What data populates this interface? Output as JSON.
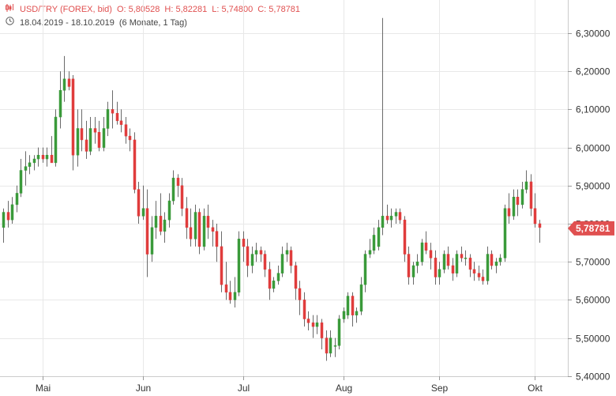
{
  "header": {
    "symbol": "USD/TRY (FOREX, bid)",
    "open": "O: 5,80528",
    "high": "H: 5,82281",
    "low": "L: 5,74800",
    "close": "C: 5,78781",
    "range": "18.04.2019 - 18.10.2019",
    "period": "(6 Monate, 1 Tag)",
    "icons": [
      "candlestick-icon",
      "clock-icon"
    ]
  },
  "colors": {
    "up": "#3a9a3a",
    "down": "#e03c3c",
    "grid": "#e8e8e8",
    "tag": "#e05050"
  },
  "chart_data": {
    "type": "candlestick",
    "ylim": [
      5.4,
      6.34
    ],
    "y_ticks": [
      "6,30000",
      "6,20000",
      "6,10000",
      "6,00000",
      "5,90000",
      "5,80000",
      "5,70000",
      "5,60000",
      "5,50000",
      "5,40000"
    ],
    "y_tick_values": [
      6.3,
      6.2,
      6.1,
      6.0,
      5.9,
      5.8,
      5.7,
      5.6,
      5.5,
      5.4
    ],
    "x_ticks": [
      "Mai",
      "Jun",
      "Jul",
      "Aug",
      "Sep",
      "Okt"
    ],
    "x_tick_index": [
      9,
      32,
      55,
      78,
      100,
      122
    ],
    "last_price_label": "5,78781",
    "last_price": 5.7878,
    "candles": [
      [
        5.79,
        5.84,
        5.75,
        5.83
      ],
      [
        5.83,
        5.86,
        5.79,
        5.81
      ],
      [
        5.81,
        5.87,
        5.8,
        5.85
      ],
      [
        5.85,
        5.9,
        5.83,
        5.88
      ],
      [
        5.88,
        5.97,
        5.87,
        5.94
      ],
      [
        5.94,
        5.99,
        5.9,
        5.95
      ],
      [
        5.95,
        5.98,
        5.93,
        5.96
      ],
      [
        5.96,
        5.98,
        5.94,
        5.97
      ],
      [
        5.97,
        6.0,
        5.95,
        5.98
      ],
      [
        5.98,
        6.0,
        5.96,
        5.97
      ],
      [
        5.97,
        6.0,
        5.95,
        5.98
      ],
      [
        5.98,
        6.03,
        5.96,
        5.96
      ],
      [
        5.96,
        6.1,
        5.95,
        6.08
      ],
      [
        6.08,
        6.2,
        6.05,
        6.15
      ],
      [
        6.15,
        6.24,
        6.12,
        6.18
      ],
      [
        6.18,
        6.2,
        6.15,
        6.16
      ],
      [
        6.18,
        6.19,
        5.94,
        5.98
      ],
      [
        5.98,
        6.1,
        5.95,
        6.05
      ],
      [
        6.05,
        6.1,
        5.99,
        6.02
      ],
      [
        6.02,
        6.07,
        5.97,
        5.99
      ],
      [
        5.99,
        6.08,
        5.98,
        6.05
      ],
      [
        6.05,
        6.08,
        6.01,
        6.04
      ],
      [
        6.04,
        6.07,
        5.99,
        6.0
      ],
      [
        6.0,
        6.08,
        5.99,
        6.05
      ],
      [
        6.05,
        6.12,
        6.03,
        6.1
      ],
      [
        6.1,
        6.15,
        6.05,
        6.09
      ],
      [
        6.09,
        6.12,
        6.06,
        6.07
      ],
      [
        6.07,
        6.1,
        6.04,
        6.06
      ],
      [
        6.06,
        6.08,
        6.01,
        6.03
      ],
      [
        6.03,
        6.05,
        5.99,
        6.02
      ],
      [
        6.02,
        6.04,
        5.88,
        5.89
      ],
      [
        5.89,
        5.91,
        5.8,
        5.82
      ],
      [
        5.82,
        5.9,
        5.81,
        5.84
      ],
      [
        5.84,
        5.89,
        5.66,
        5.72
      ],
      [
        5.72,
        5.82,
        5.7,
        5.79
      ],
      [
        5.79,
        5.86,
        5.76,
        5.82
      ],
      [
        5.82,
        5.88,
        5.77,
        5.78
      ],
      [
        5.78,
        5.83,
        5.75,
        5.81
      ],
      [
        5.81,
        5.88,
        5.79,
        5.86
      ],
      [
        5.86,
        5.94,
        5.85,
        5.92
      ],
      [
        5.92,
        5.93,
        5.87,
        5.9
      ],
      [
        5.9,
        5.92,
        5.82,
        5.84
      ],
      [
        5.84,
        5.87,
        5.76,
        5.79
      ],
      [
        5.79,
        5.84,
        5.74,
        5.76
      ],
      [
        5.76,
        5.85,
        5.74,
        5.83
      ],
      [
        5.83,
        5.84,
        5.72,
        5.74
      ],
      [
        5.74,
        5.84,
        5.73,
        5.82
      ],
      [
        5.82,
        5.85,
        5.76,
        5.79
      ],
      [
        5.79,
        5.81,
        5.74,
        5.78
      ],
      [
        5.78,
        5.8,
        5.7,
        5.74
      ],
      [
        5.74,
        5.78,
        5.62,
        5.64
      ],
      [
        5.64,
        5.7,
        5.6,
        5.62
      ],
      [
        5.62,
        5.65,
        5.59,
        5.6
      ],
      [
        5.6,
        5.66,
        5.58,
        5.62
      ],
      [
        5.62,
        5.78,
        5.61,
        5.76
      ],
      [
        5.76,
        5.78,
        5.7,
        5.74
      ],
      [
        5.74,
        5.76,
        5.66,
        5.69
      ],
      [
        5.69,
        5.74,
        5.67,
        5.72
      ],
      [
        5.72,
        5.75,
        5.7,
        5.73
      ],
      [
        5.73,
        5.74,
        5.7,
        5.72
      ],
      [
        5.72,
        5.73,
        5.66,
        5.68
      ],
      [
        5.68,
        5.7,
        5.6,
        5.63
      ],
      [
        5.63,
        5.66,
        5.62,
        5.65
      ],
      [
        5.65,
        5.69,
        5.64,
        5.67
      ],
      [
        5.67,
        5.74,
        5.66,
        5.72
      ],
      [
        5.72,
        5.75,
        5.7,
        5.73
      ],
      [
        5.73,
        5.74,
        5.67,
        5.69
      ],
      [
        5.69,
        5.7,
        5.6,
        5.63
      ],
      [
        5.63,
        5.65,
        5.56,
        5.6
      ],
      [
        5.6,
        5.62,
        5.53,
        5.55
      ],
      [
        5.55,
        5.57,
        5.52,
        5.54
      ],
      [
        5.54,
        5.56,
        5.5,
        5.53
      ],
      [
        5.53,
        5.56,
        5.51,
        5.54
      ],
      [
        5.54,
        5.55,
        5.47,
        5.5
      ],
      [
        5.5,
        5.52,
        5.44,
        5.46
      ],
      [
        5.46,
        5.52,
        5.45,
        5.5
      ],
      [
        5.48,
        5.5,
        5.45,
        5.48
      ],
      [
        5.48,
        5.56,
        5.47,
        5.55
      ],
      [
        5.55,
        5.58,
        5.54,
        5.57
      ],
      [
        5.56,
        5.62,
        5.55,
        5.61
      ],
      [
        5.61,
        5.62,
        5.53,
        5.56
      ],
      [
        5.56,
        5.58,
        5.54,
        5.57
      ],
      [
        5.57,
        5.66,
        5.56,
        5.64
      ],
      [
        5.64,
        5.73,
        5.62,
        5.72
      ],
      [
        5.72,
        5.76,
        5.71,
        5.73
      ],
      [
        5.73,
        5.79,
        5.72,
        5.77
      ],
      [
        5.74,
        5.81,
        5.73,
        5.79
      ],
      [
        5.79,
        6.34,
        5.77,
        5.82
      ],
      [
        5.82,
        5.85,
        5.8,
        5.81
      ],
      [
        5.81,
        5.84,
        5.79,
        5.82
      ],
      [
        5.82,
        5.84,
        5.8,
        5.83
      ],
      [
        5.83,
        5.84,
        5.8,
        5.81
      ],
      [
        5.81,
        5.82,
        5.7,
        5.72
      ],
      [
        5.72,
        5.74,
        5.64,
        5.66
      ],
      [
        5.66,
        5.7,
        5.64,
        5.69
      ],
      [
        5.69,
        5.72,
        5.67,
        5.7
      ],
      [
        5.7,
        5.76,
        5.69,
        5.75
      ],
      [
        5.75,
        5.78,
        5.72,
        5.73
      ],
      [
        5.73,
        5.75,
        5.68,
        5.71
      ],
      [
        5.71,
        5.73,
        5.64,
        5.66
      ],
      [
        5.66,
        5.7,
        5.64,
        5.68
      ],
      [
        5.68,
        5.73,
        5.67,
        5.72
      ],
      [
        5.72,
        5.74,
        5.68,
        5.69
      ],
      [
        5.69,
        5.71,
        5.65,
        5.67
      ],
      [
        5.67,
        5.73,
        5.66,
        5.72
      ],
      [
        5.72,
        5.74,
        5.7,
        5.71
      ],
      [
        5.71,
        5.73,
        5.69,
        5.71
      ],
      [
        5.71,
        5.72,
        5.66,
        5.68
      ],
      [
        5.68,
        5.7,
        5.65,
        5.67
      ],
      [
        5.67,
        5.69,
        5.65,
        5.66
      ],
      [
        5.66,
        5.68,
        5.64,
        5.65
      ],
      [
        5.65,
        5.74,
        5.64,
        5.72
      ],
      [
        5.72,
        5.73,
        5.68,
        5.69
      ],
      [
        5.69,
        5.71,
        5.67,
        5.7
      ],
      [
        5.7,
        5.72,
        5.69,
        5.71
      ],
      [
        5.71,
        5.85,
        5.7,
        5.84
      ],
      [
        5.84,
        5.88,
        5.8,
        5.82
      ],
      [
        5.82,
        5.89,
        5.81,
        5.87
      ],
      [
        5.87,
        5.89,
        5.82,
        5.85
      ],
      [
        5.85,
        5.91,
        5.84,
        5.89
      ],
      [
        5.89,
        5.94,
        5.88,
        5.91
      ],
      [
        5.91,
        5.93,
        5.82,
        5.84
      ],
      [
        5.84,
        5.88,
        5.79,
        5.8
      ],
      [
        5.8,
        5.81,
        5.75,
        5.79
      ]
    ]
  }
}
